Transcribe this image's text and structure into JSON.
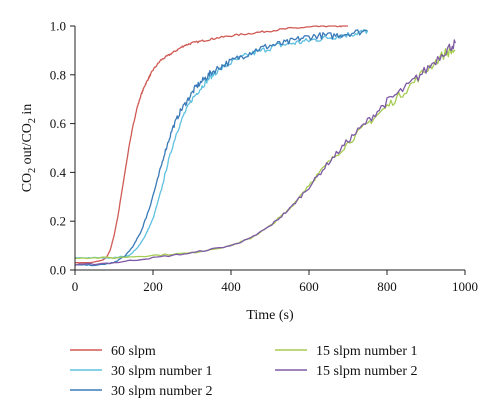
{
  "chart_data": {
    "type": "line",
    "xlabel": "Time (s)",
    "ylabel_parts": [
      "CO",
      "2",
      " out/CO",
      "2",
      " in"
    ],
    "xlim": [
      0,
      1000
    ],
    "ylim": [
      0,
      1.0
    ],
    "x_ticks": [
      "0",
      "200",
      "400",
      "600",
      "800",
      "1000"
    ],
    "y_ticks": [
      "0.0",
      "0.2",
      "0.4",
      "0.6",
      "0.8",
      "1.0"
    ],
    "grid": false,
    "legend_position": "bottom",
    "series": [
      {
        "name": "60 slpm",
        "color": "#d05a55",
        "x": [
          0,
          40,
          70,
          80,
          90,
          100,
          110,
          120,
          130,
          140,
          150,
          160,
          170,
          180,
          190,
          200,
          220,
          240,
          260,
          280,
          300,
          330,
          360,
          400,
          450,
          500,
          550,
          600,
          640,
          680,
          700
        ],
        "y": [
          0.03,
          0.03,
          0.04,
          0.05,
          0.08,
          0.14,
          0.22,
          0.32,
          0.42,
          0.52,
          0.6,
          0.67,
          0.72,
          0.76,
          0.79,
          0.82,
          0.86,
          0.88,
          0.9,
          0.92,
          0.93,
          0.94,
          0.95,
          0.96,
          0.97,
          0.98,
          0.99,
          0.995,
          1.0,
          1.0,
          1.0
        ]
      },
      {
        "name": "30 slpm number 1",
        "color": "#5fc0e0",
        "x": [
          0,
          60,
          100,
          140,
          160,
          180,
          200,
          220,
          240,
          260,
          280,
          300,
          320,
          340,
          360,
          400,
          440,
          480,
          520,
          560,
          600,
          640,
          680,
          720,
          750
        ],
        "y": [
          0.05,
          0.05,
          0.05,
          0.06,
          0.09,
          0.14,
          0.21,
          0.32,
          0.45,
          0.56,
          0.64,
          0.7,
          0.74,
          0.78,
          0.81,
          0.85,
          0.88,
          0.9,
          0.92,
          0.93,
          0.94,
          0.95,
          0.96,
          0.97,
          0.98
        ]
      },
      {
        "name": "30 slpm number 2",
        "color": "#3a7ab8",
        "x": [
          0,
          60,
          100,
          130,
          150,
          170,
          190,
          210,
          230,
          250,
          270,
          290,
          310,
          330,
          350,
          380,
          420,
          460,
          500,
          540,
          580,
          620,
          660,
          700,
          750
        ],
        "y": [
          0.02,
          0.02,
          0.03,
          0.06,
          0.1,
          0.16,
          0.25,
          0.36,
          0.48,
          0.58,
          0.65,
          0.7,
          0.75,
          0.78,
          0.81,
          0.84,
          0.87,
          0.9,
          0.92,
          0.93,
          0.95,
          0.96,
          0.96,
          0.97,
          0.98
        ]
      },
      {
        "name": "15 slpm number 1",
        "color": "#a6cc52",
        "x": [
          0,
          100,
          200,
          300,
          400,
          450,
          500,
          550,
          600,
          650,
          700,
          750,
          800,
          850,
          900,
          950,
          975
        ],
        "y": [
          0.05,
          0.05,
          0.06,
          0.07,
          0.1,
          0.13,
          0.18,
          0.25,
          0.35,
          0.44,
          0.52,
          0.6,
          0.67,
          0.74,
          0.82,
          0.89,
          0.9
        ]
      },
      {
        "name": "15 slpm number 2",
        "color": "#7e5aa5",
        "x": [
          0,
          100,
          200,
          300,
          400,
          450,
          500,
          550,
          600,
          650,
          700,
          750,
          800,
          850,
          900,
          950,
          975
        ],
        "y": [
          0.02,
          0.03,
          0.05,
          0.07,
          0.1,
          0.13,
          0.18,
          0.25,
          0.34,
          0.44,
          0.53,
          0.61,
          0.69,
          0.75,
          0.82,
          0.9,
          0.93
        ]
      }
    ]
  }
}
